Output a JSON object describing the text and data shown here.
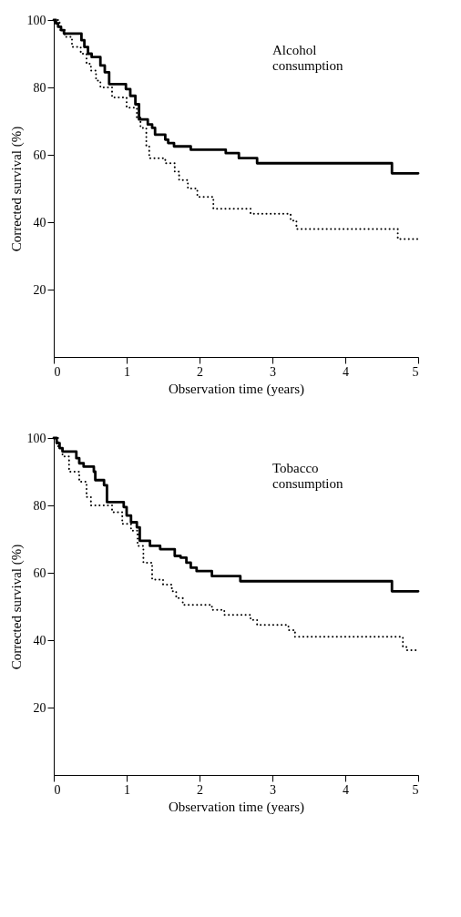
{
  "chart_data": [
    {
      "type": "step",
      "xlabel": "Observation time (years)",
      "ylabel": "Corrected survival (%)",
      "xlim": [
        0,
        5
      ],
      "ylim": [
        0,
        100
      ],
      "xticks": [
        0,
        1,
        2,
        3,
        4,
        5
      ],
      "yticks": [
        20,
        40,
        60,
        80,
        100
      ],
      "grid": false,
      "annotations": [
        "Alcohol\nconsumption"
      ],
      "series": [
        {
          "color": "#000000",
          "line_style": "solid",
          "x": [
            0,
            0.03,
            0.06,
            0.1,
            0.14,
            0.38,
            0.42,
            0.47,
            0.52,
            0.64,
            0.7,
            0.76,
            0.99,
            1.05,
            1.12,
            1.17,
            1.29,
            1.35,
            1.39,
            1.53,
            1.57,
            1.65,
            1.88,
            2.36,
            2.54,
            2.79,
            4.64,
            5
          ],
          "values": [
            100,
            99,
            98,
            97,
            96,
            94,
            92,
            90,
            89,
            86.5,
            84.5,
            81,
            79.5,
            77.5,
            75,
            70.5,
            69,
            68,
            66,
            64.5,
            63.5,
            62.5,
            61.5,
            60.5,
            59,
            57.5,
            54.5,
            54.5
          ]
        },
        {
          "color": "#000000",
          "line_style": "dotted",
          "x": [
            0,
            0.08,
            0.15,
            0.25,
            0.37,
            0.45,
            0.51,
            0.58,
            0.64,
            0.8,
            1.0,
            1.14,
            1.19,
            1.27,
            1.31,
            1.53,
            1.66,
            1.72,
            1.84,
            1.97,
            2.19,
            2.7,
            3.25,
            3.33,
            4.72,
            5
          ],
          "values": [
            100,
            97,
            95,
            92,
            90,
            87,
            85,
            82,
            80,
            77,
            74,
            71,
            68,
            62.5,
            59,
            57.5,
            55,
            52.5,
            50,
            47.5,
            44,
            42.5,
            40.5,
            38,
            35,
            34.5
          ]
        }
      ]
    },
    {
      "type": "step",
      "xlabel": "Observation time (years)",
      "ylabel": "Corrected survival (%)",
      "xlim": [
        0,
        5
      ],
      "ylim": [
        0,
        100
      ],
      "xticks": [
        0,
        1,
        2,
        3,
        4,
        5
      ],
      "yticks": [
        20,
        40,
        60,
        80,
        100
      ],
      "grid": false,
      "annotations": [
        "Tobacco\nconsumption"
      ],
      "series": [
        {
          "color": "#000000",
          "line_style": "solid",
          "x": [
            0,
            0.04,
            0.08,
            0.12,
            0.31,
            0.35,
            0.41,
            0.55,
            0.57,
            0.69,
            0.73,
            0.96,
            1.0,
            1.06,
            1.14,
            1.18,
            1.32,
            1.46,
            1.66,
            1.74,
            1.82,
            1.88,
            1.96,
            2.17,
            2.56,
            4.64,
            5
          ],
          "values": [
            100,
            98.5,
            97,
            96,
            94,
            92.5,
            91.5,
            90,
            87.5,
            86,
            81,
            79.5,
            77,
            75,
            73.5,
            69.5,
            68,
            67,
            65,
            64.5,
            63,
            61.5,
            60.5,
            59,
            57.5,
            54.5,
            54.5
          ]
        },
        {
          "color": "#000000",
          "line_style": "dotted",
          "x": [
            0,
            0.06,
            0.12,
            0.21,
            0.35,
            0.45,
            0.51,
            0.8,
            0.94,
            1.06,
            1.15,
            1.23,
            1.35,
            1.5,
            1.62,
            1.68,
            1.77,
            2.17,
            2.34,
            2.7,
            2.79,
            3.22,
            3.31,
            4.79,
            4.84,
            5
          ],
          "values": [
            100,
            97,
            94.5,
            90,
            87,
            82.5,
            80,
            78,
            74.5,
            72.5,
            68,
            63,
            58,
            56.5,
            54.5,
            52.5,
            50.5,
            49,
            47.5,
            46,
            44.5,
            43,
            41,
            38,
            37,
            37
          ]
        }
      ]
    }
  ]
}
